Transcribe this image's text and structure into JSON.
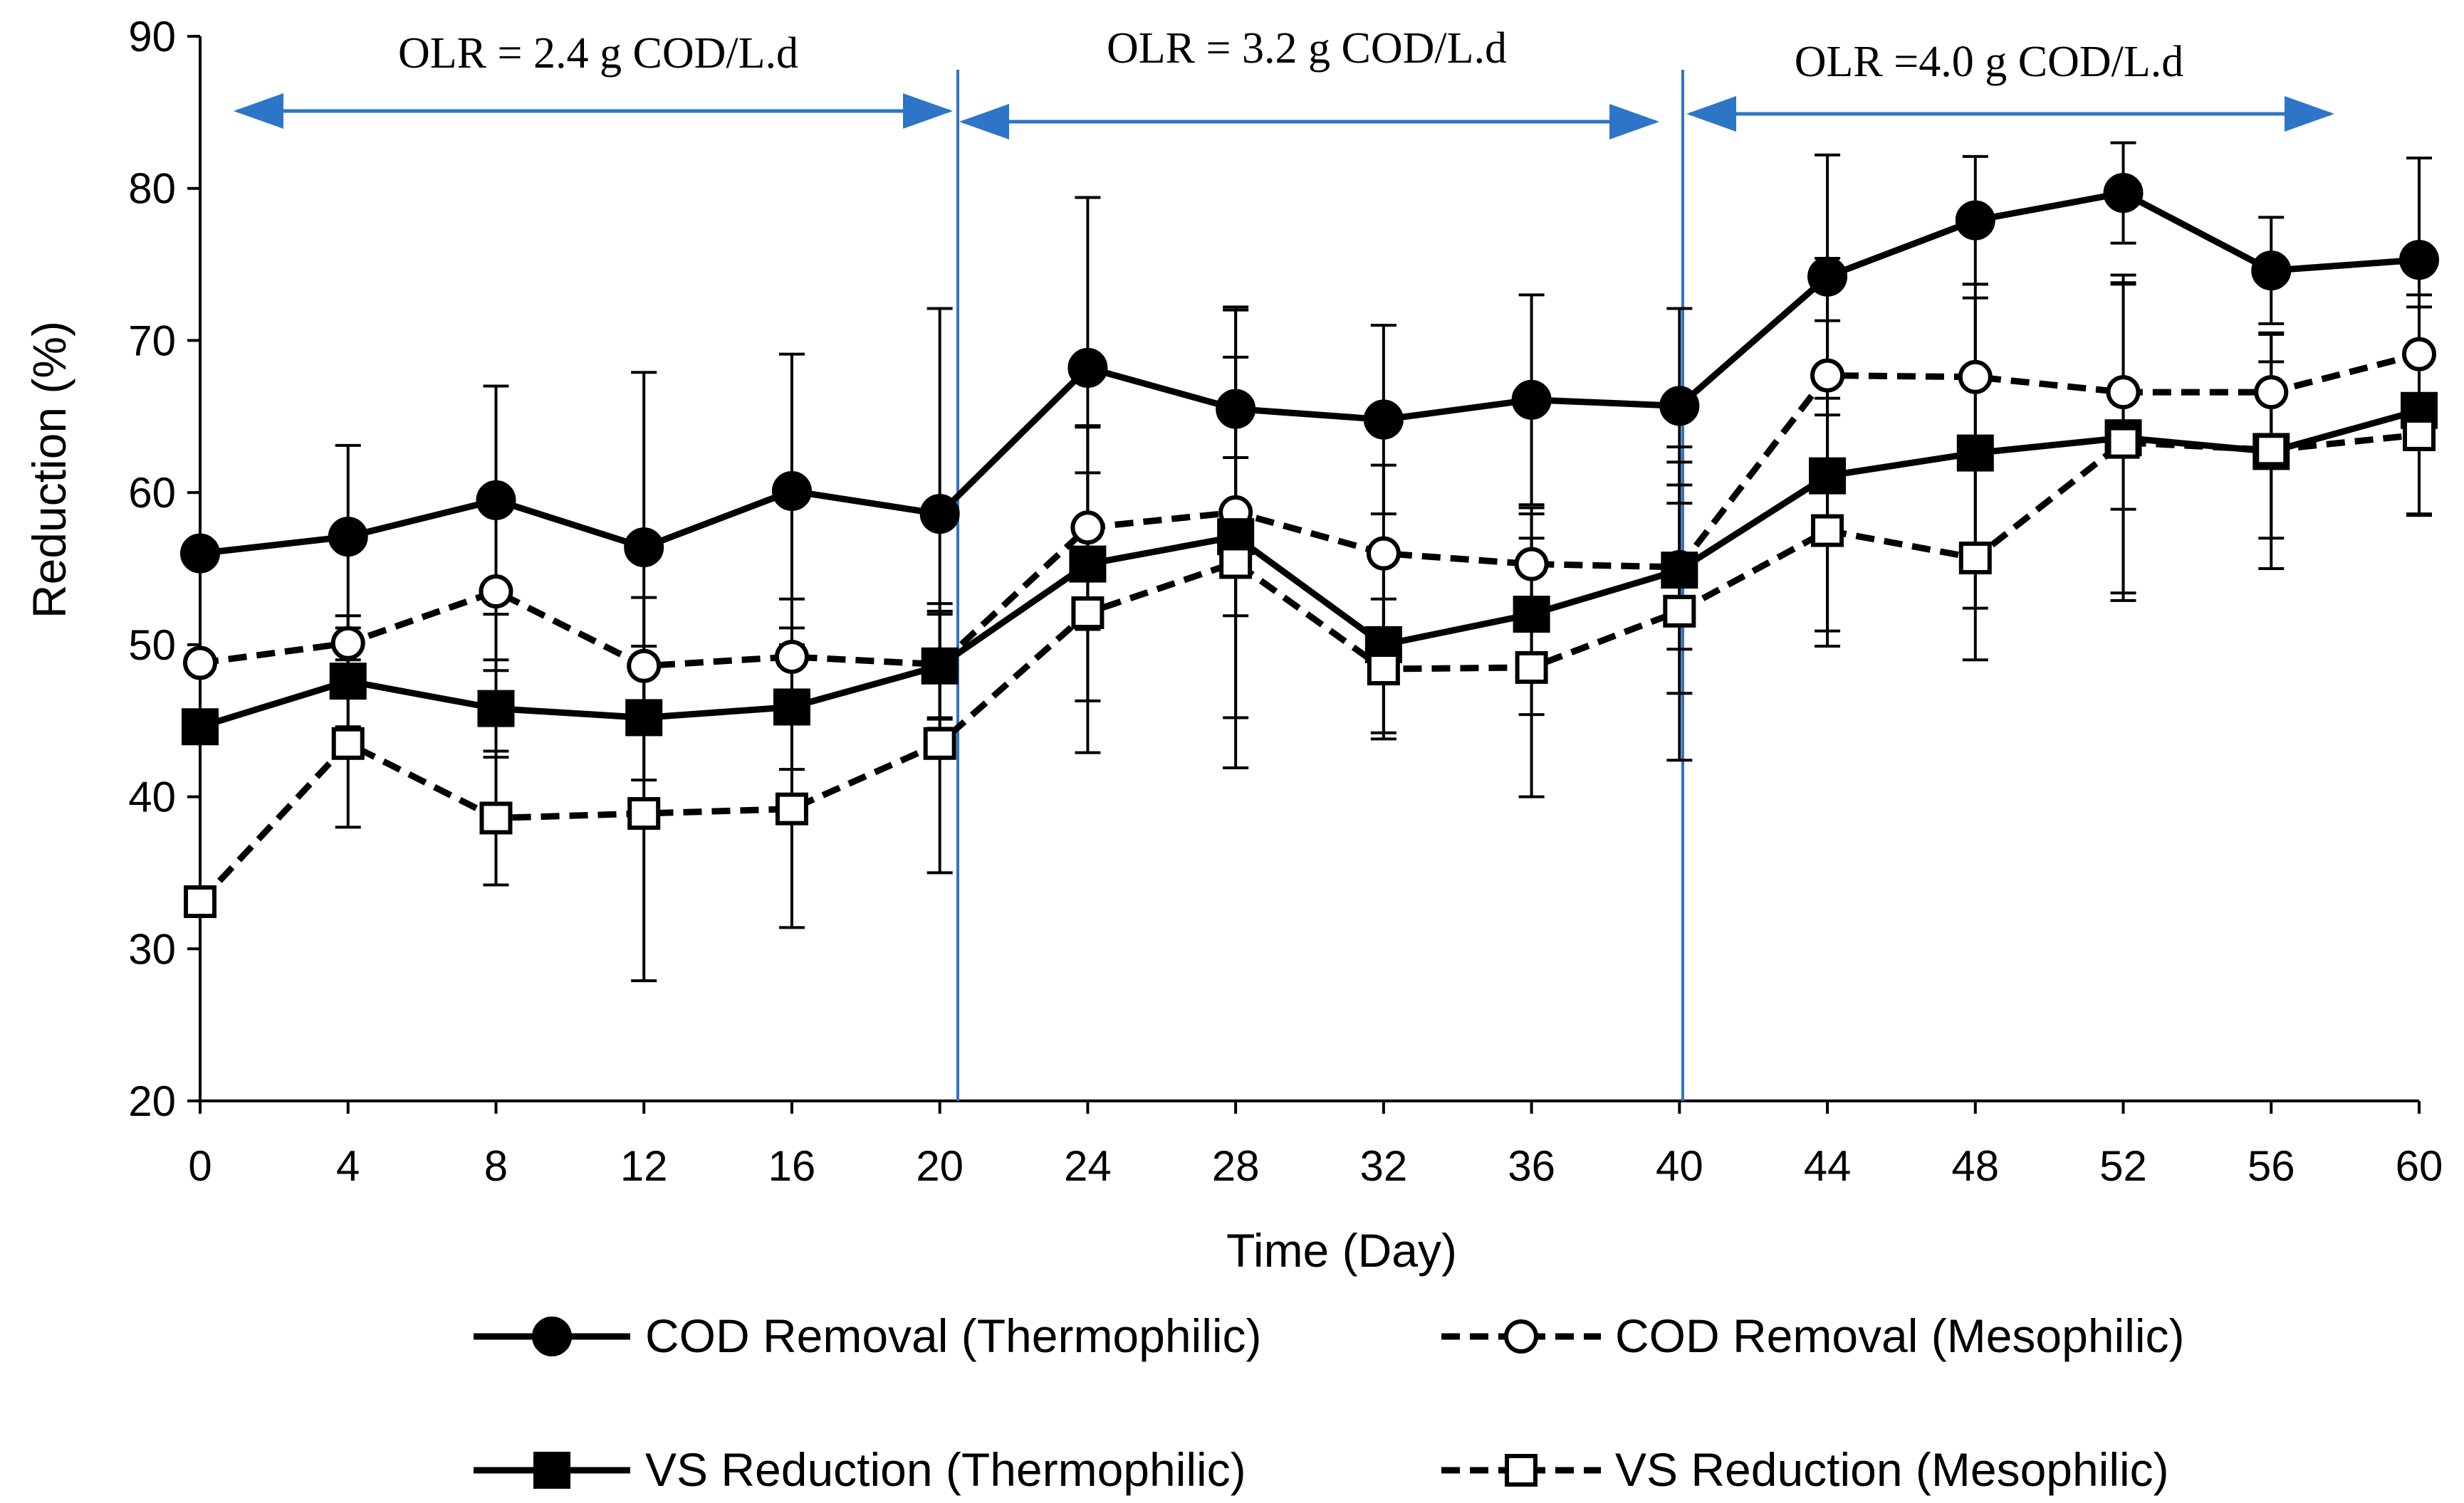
{
  "chart_data": {
    "type": "line",
    "title": "",
    "xlabel": "Time  (Day)",
    "ylabel": "Reduction (%)",
    "xlim": [
      0,
      60
    ],
    "ylim": [
      20,
      90
    ],
    "xticks": [
      0,
      4,
      8,
      12,
      16,
      20,
      24,
      28,
      32,
      36,
      40,
      44,
      48,
      52,
      56,
      60
    ],
    "yticks": [
      20,
      30,
      40,
      50,
      60,
      70,
      80,
      90
    ],
    "grid": false,
    "legend_position": "bottom",
    "x": [
      0,
      4,
      8,
      12,
      16,
      20,
      24,
      28,
      32,
      36,
      40,
      44,
      48,
      52,
      56,
      60
    ],
    "series": [
      {
        "name": "COD Removal (Thermophilic)",
        "line": "solid",
        "marker": "filled-circle",
        "values": [
          56,
          57.1,
          59.5,
          56.4,
          60.1,
          58.6,
          68.2,
          65.5,
          64.8,
          66.1,
          65.7,
          74.2,
          77.9,
          79.7,
          74.6,
          75.3
        ],
        "error": [
          null,
          6,
          7.5,
          11.5,
          9,
          13.5,
          11.2,
          6.5,
          6.2,
          6.9,
          6.4,
          8,
          4.2,
          3.3,
          3.5,
          6.7
        ]
      },
      {
        "name": "COD Removal (Mesophilic)",
        "line": "dashed",
        "marker": "open-circle",
        "values": [
          48.8,
          50.1,
          53.5,
          48.6,
          49.2,
          48.7,
          57.7,
          58.7,
          56,
          55.3,
          55.1,
          67.7,
          67.6,
          66.6,
          66.6,
          69.1
        ],
        "error": [
          null,
          1.8,
          5.2,
          4.5,
          3.8,
          3.5,
          6.7,
          13.5,
          5.8,
          3.7,
          5.4,
          7.7,
          6.1,
          7.7,
          3.9,
          3.9
        ]
      },
      {
        "name": "VS Reduction (Thermophilic)",
        "line": "solid",
        "marker": "filled-square",
        "values": [
          44.6,
          47.6,
          45.8,
          45.2,
          45.9,
          48.6,
          55.3,
          57.1,
          50,
          52,
          54.9,
          61.1,
          62.6,
          63.6,
          62.7,
          65.4
        ],
        "error": [
          null,
          3,
          3.2,
          4.1,
          4.1,
          4.1,
          9,
          5.2,
          5.8,
          6.6,
          8.1,
          10.2,
          10.2,
          10.2,
          7.7,
          6.8
        ]
      },
      {
        "name": "VS Reduction (Mesophilic)",
        "line": "dashed",
        "marker": "open-square",
        "values": [
          33.1,
          43.5,
          38.6,
          38.9,
          39.2,
          43.5,
          52.1,
          55.4,
          48.4,
          48.5,
          52.2,
          57.5,
          55.7,
          63.3,
          62.8,
          63.8
        ],
        "error": [
          null,
          5.5,
          4.4,
          11,
          7.8,
          8.5,
          9.2,
          13.5,
          4.6,
          8.5,
          9.8,
          7.6,
          6.7,
          10.4,
          5.8,
          5.3
        ]
      }
    ],
    "phases": [
      {
        "label": "OLR = 2.4 g COD/L.d",
        "start": 0,
        "end": 20
      },
      {
        "label": "OLR = 3.2 g COD/L.d",
        "start": 20,
        "end": 40
      },
      {
        "label": "OLR =4.0 g COD/L.d",
        "start": 40,
        "end": 60
      }
    ],
    "phase_color": "#2E75C8"
  }
}
